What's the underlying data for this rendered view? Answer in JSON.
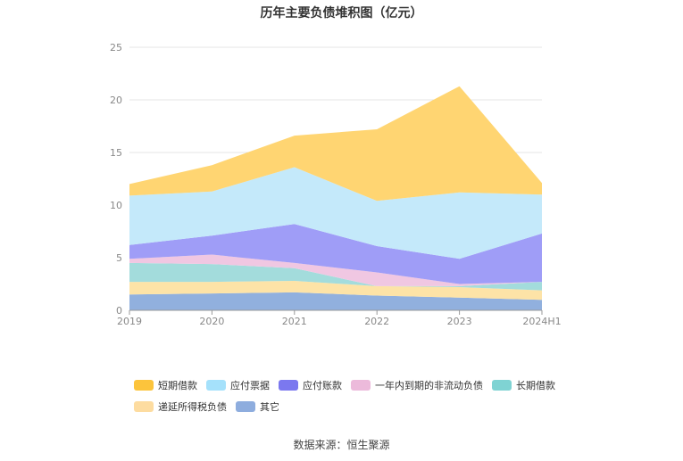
{
  "chart_data": {
    "type": "area",
    "stacked": true,
    "title": "历年主要负债堆积图（亿元）",
    "categories": [
      "2019",
      "2020",
      "2021",
      "2022",
      "2023",
      "2024H1"
    ],
    "ylim": [
      0,
      25
    ],
    "yticks": [
      "0",
      "5",
      "10",
      "15",
      "20",
      "25"
    ],
    "grid": true,
    "legend_position": "bottom",
    "series": [
      {
        "name": "其它",
        "color": "#91b0de",
        "values": [
          1.5,
          1.6,
          1.7,
          1.4,
          1.2,
          1.0
        ]
      },
      {
        "name": "递延所得税负债",
        "color": "#fde3a7",
        "values": [
          1.2,
          1.1,
          1.1,
          0.9,
          1.0,
          0.9
        ]
      },
      {
        "name": "长期借款",
        "color": "#a3dcdc",
        "values": [
          1.8,
          1.7,
          1.2,
          0.0,
          0.1,
          0.8
        ]
      },
      {
        "name": "一年内到期的非流动负债",
        "color": "#f0c7e2",
        "values": [
          0.4,
          0.9,
          0.5,
          1.3,
          0.2,
          0.0
        ]
      },
      {
        "name": "应付账款",
        "color": "#9f9df7",
        "values": [
          1.3,
          1.8,
          3.7,
          2.5,
          2.4,
          4.6
        ]
      },
      {
        "name": "应付票据",
        "color": "#c4e9fa",
        "values": [
          4.7,
          4.2,
          5.4,
          4.3,
          6.3,
          3.7
        ]
      },
      {
        "name": "短期借款",
        "color": "#ffd572",
        "values": [
          1.1,
          2.5,
          3.0,
          6.8,
          10.1,
          1.1
        ]
      }
    ]
  },
  "legend": {
    "row1": [
      {
        "label": "短期借款",
        "color": "#fcc43c"
      },
      {
        "label": "应付票据",
        "color": "#a5e1fb"
      },
      {
        "label": "应付账款",
        "color": "#7b78ef"
      },
      {
        "label": "一年内到期的非流动负债",
        "color": "#ecbadb"
      },
      {
        "label": "长期借款",
        "color": "#7fd3d3"
      }
    ],
    "row2": [
      {
        "label": "递延所得税负债",
        "color": "#fddca0"
      },
      {
        "label": "其它",
        "color": "#8eadde"
      }
    ]
  },
  "source": "数据来源：恒生聚源"
}
